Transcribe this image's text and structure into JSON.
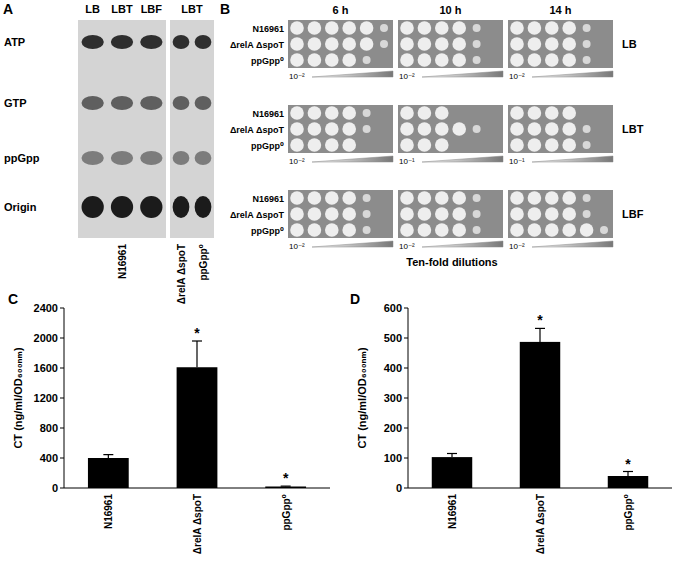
{
  "panel_a": {
    "label": "A",
    "spots": [
      "ATP",
      "GTP",
      "ppGpp",
      "Origin"
    ],
    "blocks": [
      {
        "lanes": [
          "LB",
          "LBT",
          "LBF"
        ],
        "strains": [
          "N16961"
        ]
      },
      {
        "lanes": [
          "LBT"
        ],
        "strains": [
          "ΔrelA ΔspoT",
          "ppGpp⁰"
        ]
      }
    ]
  },
  "panel_b": {
    "label": "B",
    "times": [
      "6 h",
      "10 h",
      "14 h"
    ],
    "media": [
      "LB",
      "LBT",
      "LBF"
    ],
    "strains": [
      "N16961",
      "ΔrelA ΔspoT",
      "ppGpp⁰"
    ],
    "start_dilution": [
      [
        "10⁻²",
        "10⁻²",
        "10⁻²"
      ],
      [
        "10⁻²",
        "10⁻¹",
        "10⁻¹"
      ],
      [
        "10⁻²",
        "10⁻²",
        "10⁻²"
      ]
    ],
    "growth_spots": [
      [
        [
          6,
          6,
          5
        ],
        [
          5,
          5,
          5
        ],
        [
          5,
          5,
          5
        ]
      ],
      [
        [
          5,
          5,
          4
        ],
        [
          3,
          5,
          3
        ],
        [
          4,
          5,
          5
        ]
      ],
      [
        [
          5,
          5,
          5
        ],
        [
          5,
          5,
          5
        ],
        [
          5,
          5,
          6
        ]
      ]
    ],
    "axis_label": "Ten-fold dilutions"
  },
  "chart_data": [
    {
      "type": "bar",
      "title": "C",
      "categories": [
        "N16961",
        "ΔrelA ΔspoT",
        "ppGpp⁰"
      ],
      "values": [
        400,
        1610,
        20
      ],
      "errors": [
        45,
        350,
        5
      ],
      "color": "#000000",
      "ylim": [
        0,
        2400
      ],
      "yticks": [
        0,
        400,
        800,
        1200,
        1600,
        2000,
        2400
      ],
      "y_label": "CT (ng/ml/OD₆₀₀ₙₘ)",
      "annotations": [
        {
          "index": 1,
          "text": "*"
        },
        {
          "index": 2,
          "text": "*"
        }
      ]
    },
    {
      "type": "bar",
      "title": "D",
      "categories": [
        "N16961",
        "ΔrelA ΔspoT",
        "ppGpp⁰"
      ],
      "values": [
        103,
        487,
        40
      ],
      "errors": [
        12,
        45,
        15
      ],
      "color": "#000000",
      "ylim": [
        0,
        600
      ],
      "yticks": [
        0,
        100,
        200,
        300,
        400,
        500,
        600
      ],
      "y_label": "CT (ng/ml/OD₆₀₀ₙₘ)",
      "annotations": [
        {
          "index": 1,
          "text": "*"
        },
        {
          "index": 2,
          "text": "*"
        }
      ]
    }
  ]
}
